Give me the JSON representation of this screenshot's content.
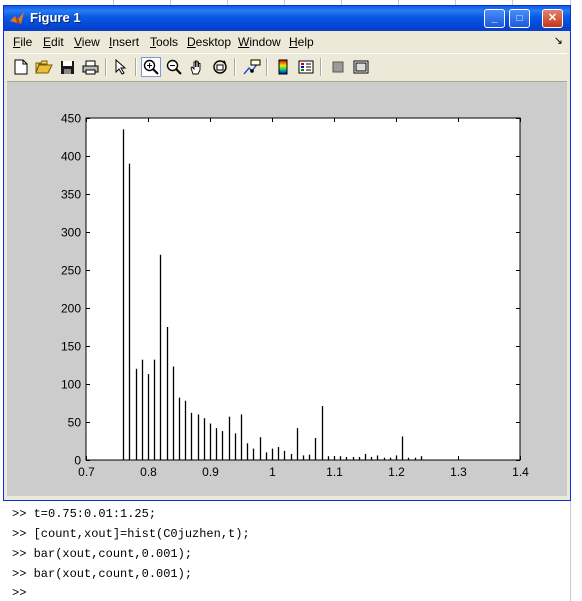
{
  "window": {
    "title": "Figure 1",
    "controls": {
      "minimize": "_",
      "maximize": "□",
      "close": "✕"
    }
  },
  "menubar": {
    "items": [
      {
        "label": "File",
        "accel": "F",
        "rest": "ile"
      },
      {
        "label": "Edit",
        "accel": "E",
        "rest": "dit"
      },
      {
        "label": "View",
        "accel": "V",
        "rest": "iew"
      },
      {
        "label": "Insert",
        "accel": "I",
        "rest": "nsert"
      },
      {
        "label": "Tools",
        "accel": "T",
        "rest": "ools"
      },
      {
        "label": "Desktop",
        "accel": "D",
        "rest": "esktop"
      },
      {
        "label": "Window",
        "accel": "W",
        "rest": "indow"
      },
      {
        "label": "Help",
        "accel": "H",
        "rest": "elp"
      }
    ],
    "dock_arrow": "↘"
  },
  "toolbar": {
    "icons": [
      "new-figure-icon",
      "open-file-icon",
      "save-icon",
      "print-icon",
      "edit-plot-icon",
      "zoom-in-icon",
      "zoom-out-icon",
      "pan-icon",
      "rotate-3d-icon",
      "data-cursor-icon",
      "insert-colorbar-icon",
      "insert-legend-icon",
      "hide-plot-tools-icon",
      "show-plot-tools-icon"
    ],
    "active": "zoom-in-icon"
  },
  "chart_data": {
    "type": "bar",
    "title": "",
    "xlabel": "",
    "ylabel": "",
    "xlim": [
      0.7,
      1.4
    ],
    "ylim": [
      0,
      450
    ],
    "xticks": [
      0.7,
      0.8,
      0.9,
      1,
      1.1,
      1.2,
      1.3,
      1.4
    ],
    "yticks": [
      0,
      50,
      100,
      150,
      200,
      250,
      300,
      350,
      400,
      450
    ],
    "grid": false,
    "bar_color": "#000000",
    "x": [
      0.76,
      0.77,
      0.78,
      0.79,
      0.8,
      0.81,
      0.82,
      0.83,
      0.84,
      0.85,
      0.86,
      0.87,
      0.88,
      0.89,
      0.9,
      0.91,
      0.92,
      0.93,
      0.94,
      0.95,
      0.96,
      0.97,
      0.98,
      0.99,
      1.0,
      1.01,
      1.02,
      1.03,
      1.04,
      1.05,
      1.06,
      1.07,
      1.08,
      1.09,
      1.1,
      1.11,
      1.12,
      1.13,
      1.14,
      1.15,
      1.16,
      1.17,
      1.18,
      1.19,
      1.2,
      1.21,
      1.22,
      1.23,
      1.24
    ],
    "values": [
      435,
      390,
      120,
      132,
      113,
      132,
      270,
      175,
      123,
      82,
      78,
      62,
      60,
      55,
      48,
      42,
      38,
      57,
      35,
      60,
      22,
      15,
      30,
      10,
      15,
      17,
      12,
      8,
      42,
      6,
      7,
      29,
      71,
      5,
      5,
      5,
      4,
      4,
      4,
      8,
      4,
      6,
      3,
      3,
      6,
      31,
      3,
      3,
      5
    ]
  },
  "command_window": {
    "lines": [
      ">> t=0.75:0.01:1.25;",
      ">> [count,xout]=hist(C0juzhen,t);",
      ">> bar(xout,count,0.001);",
      ">> bar(xout,count,0.001);",
      ">>"
    ]
  }
}
